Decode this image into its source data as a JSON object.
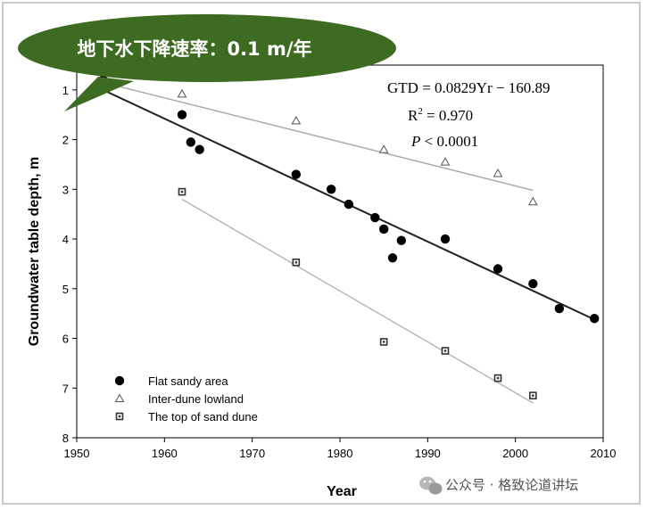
{
  "callout": {
    "text": "地下水下降速率：0.1 m/年",
    "color": "#3d6b21"
  },
  "watermark": {
    "text": "公众号 · 格致论道讲坛"
  },
  "equation": {
    "line1": "GTD = 0.0829Yr  −  160.89",
    "r2_label": "R",
    "r2_sup": "2",
    "r2_value": " =  0.970",
    "p_label": "P",
    "p_value": "  <  0.0001"
  },
  "chart_data": {
    "type": "scatter",
    "title": "",
    "xlabel": "Year",
    "ylabel": "Groundwater table depth, m",
    "xlim": [
      1950,
      2010
    ],
    "ylim": [
      8,
      1
    ],
    "y_inverted": true,
    "xticks": [
      1950,
      1960,
      1970,
      1980,
      1990,
      2000,
      2010
    ],
    "yticks": [
      1,
      2,
      3,
      4,
      5,
      6,
      7,
      8
    ],
    "grid": false,
    "legend_position": "bottom-left",
    "series": [
      {
        "name": "Flat sandy area",
        "marker": "circle",
        "color": "#000000",
        "x": [
          1953,
          1962,
          1963,
          1964,
          1975,
          1979,
          1981,
          1984,
          1985,
          1986,
          1987,
          1992,
          1998,
          2002,
          2005,
          2009
        ],
        "y": [
          0.8,
          1.5,
          2.05,
          2.2,
          2.7,
          3.0,
          3.3,
          3.57,
          3.8,
          4.38,
          4.03,
          4.0,
          4.6,
          4.9,
          5.4,
          5.6
        ],
        "fit": {
          "x": [
            1953,
            2009
          ],
          "y": [
            1.0,
            5.62
          ],
          "color": "#222222"
        }
      },
      {
        "name": "Inter-dune lowland",
        "marker": "triangle",
        "color": "#555555",
        "x": [
          1962,
          1975,
          1985,
          1992,
          1998,
          2002
        ],
        "y": [
          1.08,
          1.62,
          2.2,
          2.45,
          2.68,
          3.25
        ],
        "fit": {
          "x": [
            1953,
            2002
          ],
          "y": [
            0.85,
            3.02
          ],
          "color": "#a8a8a8"
        }
      },
      {
        "name": "The top of sand dune",
        "marker": "square",
        "color": "#333333",
        "x": [
          1962,
          1975,
          1985,
          1992,
          1998,
          2002
        ],
        "y": [
          3.05,
          4.47,
          6.07,
          6.25,
          6.8,
          7.15
        ],
        "fit": {
          "x": [
            1962,
            2002
          ],
          "y": [
            3.2,
            7.3
          ],
          "color": "#b5b5b5"
        }
      }
    ]
  }
}
